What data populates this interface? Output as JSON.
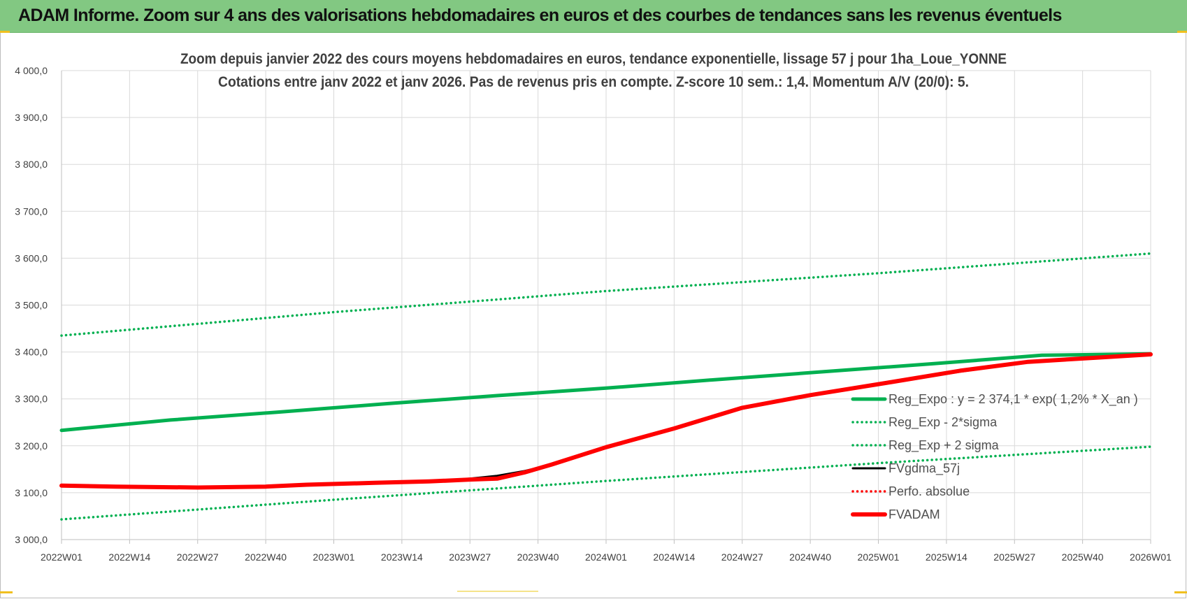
{
  "banner": {
    "title": "ADAM Informe. Zoom sur 4 ans des valorisations hebdomadaires en euros et des courbes de tendances sans les revenus éventuels"
  },
  "colors": {
    "banner": "#82c882",
    "green": "#00b050",
    "black": "#000000",
    "red": "#ff0000",
    "grid": "#d9d9d9"
  },
  "chart_data": {
    "type": "line",
    "title_lines": [
      "Zoom depuis janvier 2022 des cours moyens hebdomadaires en euros, tendance exponentielle, lissage 57 j pour 1ha_Loue_YONNE",
      "Cotations entre janv 2022 et janv 2026. Pas de revenus pris en compte. Z-score 10 sem.: 1,4. Momentum A/V (20/0): 5."
    ],
    "x_ticks": [
      "2022W01",
      "2022W14",
      "2022W27",
      "2022W40",
      "2023W01",
      "2023W14",
      "2023W27",
      "2023W40",
      "2024W01",
      "2024W14",
      "2024W27",
      "2024W40",
      "2025W01",
      "2025W14",
      "2025W27",
      "2025W40",
      "2026W01"
    ],
    "y_ticks": [
      "3 000,0",
      "3 100,0",
      "3 200,0",
      "3 300,0",
      "3 400,0",
      "3 500,0",
      "3 600,0",
      "3 700,0",
      "3 800,0",
      "3 900,0",
      "4 000,0"
    ],
    "ylim": [
      3000,
      4000
    ],
    "legend_position": "right",
    "grid": true,
    "series": [
      {
        "name": "Reg_Expo : y = 2 374,1 * exp( 1,2% *  X_an )",
        "style": "solid-thick",
        "color": "#00b050",
        "points": [
          [
            0,
            3233
          ],
          [
            16,
            3255
          ],
          [
            32,
            3272
          ],
          [
            48,
            3290
          ],
          [
            64,
            3307
          ],
          [
            80,
            3323
          ],
          [
            96,
            3341
          ],
          [
            112,
            3358
          ],
          [
            128,
            3375
          ],
          [
            144,
            3393
          ],
          [
            160,
            3396
          ]
        ]
      },
      {
        "name": "Reg_Exp - 2*sigma",
        "style": "dotted",
        "color": "#00b050",
        "points": [
          [
            0,
            3435
          ],
          [
            40,
            3485
          ],
          [
            80,
            3530
          ],
          [
            120,
            3568
          ],
          [
            160,
            3610
          ]
        ]
      },
      {
        "name": "Reg_Exp + 2 sigma",
        "style": "dotted",
        "color": "#00b050",
        "points": [
          [
            0,
            3043
          ],
          [
            40,
            3085
          ],
          [
            80,
            3125
          ],
          [
            120,
            3163
          ],
          [
            160,
            3198
          ]
        ]
      },
      {
        "name": "FVgdma_57j",
        "style": "solid",
        "color": "#000000",
        "points": [
          [
            0,
            3115
          ],
          [
            8,
            3113
          ],
          [
            20,
            3112
          ],
          [
            30,
            3113
          ],
          [
            36,
            3117
          ],
          [
            46,
            3121
          ],
          [
            54,
            3124
          ],
          [
            60,
            3130
          ],
          [
            64,
            3136
          ],
          [
            68,
            3146
          ],
          [
            72,
            3160
          ],
          [
            80,
            3197
          ],
          [
            90,
            3237
          ],
          [
            100,
            3279
          ],
          [
            110,
            3307
          ],
          [
            122,
            3335
          ],
          [
            132,
            3358
          ],
          [
            142,
            3378
          ],
          [
            152,
            3388
          ],
          [
            160,
            3395
          ]
        ]
      },
      {
        "name": "Perfo. absolue",
        "style": "dotted",
        "color": "#ff0000",
        "points": []
      },
      {
        "name": "FVADAM",
        "style": "solid-thick",
        "color": "#ff0000",
        "points": [
          [
            0,
            3115
          ],
          [
            8,
            3113
          ],
          [
            20,
            3111
          ],
          [
            30,
            3113
          ],
          [
            36,
            3117
          ],
          [
            46,
            3121
          ],
          [
            54,
            3124
          ],
          [
            60,
            3128
          ],
          [
            64,
            3130
          ],
          [
            68,
            3143
          ],
          [
            72,
            3160
          ],
          [
            80,
            3197
          ],
          [
            90,
            3237
          ],
          [
            100,
            3281
          ],
          [
            110,
            3308
          ],
          [
            122,
            3336
          ],
          [
            132,
            3360
          ],
          [
            142,
            3379
          ],
          [
            152,
            3388
          ],
          [
            160,
            3395
          ]
        ]
      }
    ]
  }
}
